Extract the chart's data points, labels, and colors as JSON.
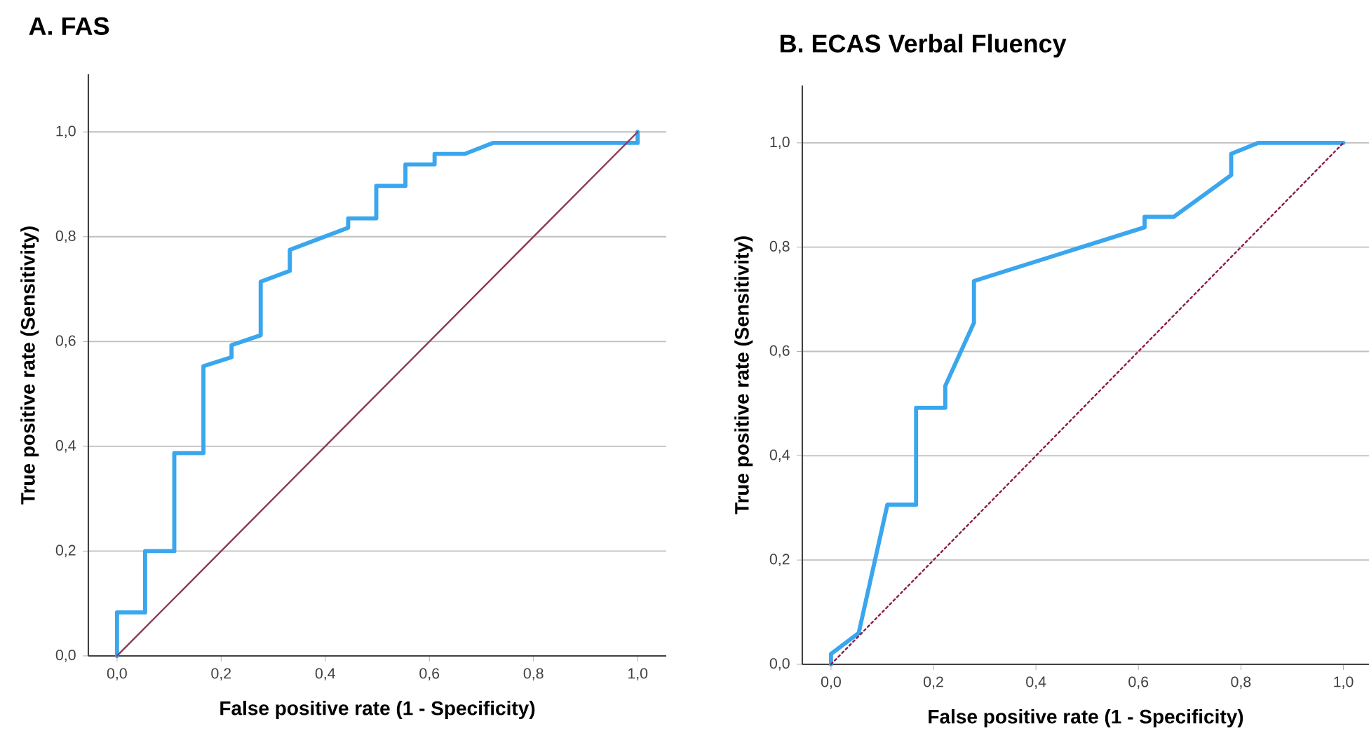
{
  "chart_data": [
    {
      "type": "line",
      "title": "A. FAS",
      "xlabel": "False positive rate (1 - Specificity)",
      "ylabel": "True positive rate (Sensitivity)",
      "xlim": [
        -0.055,
        1.055
      ],
      "ylim": [
        0,
        1.11
      ],
      "xticks": [
        {
          "value": 0,
          "label": "0,0"
        },
        {
          "value": 0.2,
          "label": "0,2"
        },
        {
          "value": 0.4,
          "label": "0,4"
        },
        {
          "value": 0.6,
          "label": "0,6"
        },
        {
          "value": 0.8,
          "label": "0,8"
        },
        {
          "value": 1,
          "label": "1,0"
        }
      ],
      "yticks": [
        {
          "value": 0,
          "label": "0,0"
        },
        {
          "value": 0.2,
          "label": "0,2"
        },
        {
          "value": 0.4,
          "label": "0,4"
        },
        {
          "value": 0.6,
          "label": "0,6"
        },
        {
          "value": 0.8,
          "label": "0,8"
        },
        {
          "value": 1,
          "label": "1,0"
        }
      ],
      "grid": "y",
      "marker": "none",
      "series": [
        {
          "color": "#3aa6ee",
          "line_style": "solid",
          "x": [
            0,
            0,
            0.054,
            0.054,
            0.11,
            0.11,
            0.166,
            0.166,
            0.22,
            0.22,
            0.276,
            0.276,
            0.332,
            0.332,
            0.444,
            0.444,
            0.498,
            0.498,
            0.554,
            0.554,
            0.61,
            0.61,
            0.668,
            0.722,
            1.0,
            1.0
          ],
          "values": [
            0,
            0.083,
            0.083,
            0.2,
            0.2,
            0.387,
            0.387,
            0.553,
            0.57,
            0.593,
            0.612,
            0.714,
            0.735,
            0.775,
            0.817,
            0.835,
            0.835,
            0.897,
            0.897,
            0.938,
            0.938,
            0.958,
            0.958,
            0.979,
            0.979,
            1.0
          ]
        },
        {
          "color": "#8b3a5a",
          "line_style": "solid",
          "x": [
            0,
            1
          ],
          "values": [
            0,
            1
          ]
        }
      ]
    },
    {
      "type": "line",
      "title": "B. ECAS Verbal Fluency",
      "xlabel": "False positive rate (1 - Specificity)",
      "ylabel": "True positive rate (Sensitivity)",
      "xlim": [
        -0.056,
        1.05
      ],
      "ylim": [
        0,
        1.11
      ],
      "xticks": [
        {
          "value": 0,
          "label": "0,0"
        },
        {
          "value": 0.2,
          "label": "0,2"
        },
        {
          "value": 0.4,
          "label": "0,4"
        },
        {
          "value": 0.6,
          "label": "0,6"
        },
        {
          "value": 0.8,
          "label": "0,8"
        },
        {
          "value": 1,
          "label": "1,0"
        }
      ],
      "yticks": [
        {
          "value": 0,
          "label": "0,0"
        },
        {
          "value": 0.2,
          "label": "0,2"
        },
        {
          "value": 0.4,
          "label": "0,4"
        },
        {
          "value": 0.6,
          "label": "0,6"
        },
        {
          "value": 0.8,
          "label": "0,8"
        },
        {
          "value": 1,
          "label": "1,0"
        }
      ],
      "grid": "y",
      "marker": "none",
      "series": [
        {
          "color": "#3aa6ee",
          "line_style": "solid",
          "x": [
            0,
            0,
            0.054,
            0.11,
            0.166,
            0.166,
            0.223,
            0.223,
            0.279,
            0.279,
            0.612,
            0.612,
            0.669,
            0.781,
            0.781,
            0.834,
            1.0
          ],
          "values": [
            0,
            0.02,
            0.06,
            0.306,
            0.306,
            0.492,
            0.492,
            0.534,
            0.655,
            0.735,
            0.838,
            0.858,
            0.858,
            0.938,
            0.979,
            1.0,
            1.0
          ]
        },
        {
          "color": "#8b1a4a",
          "line_style": "dotted",
          "x": [
            0,
            1
          ],
          "values": [
            0,
            1
          ]
        }
      ]
    }
  ]
}
